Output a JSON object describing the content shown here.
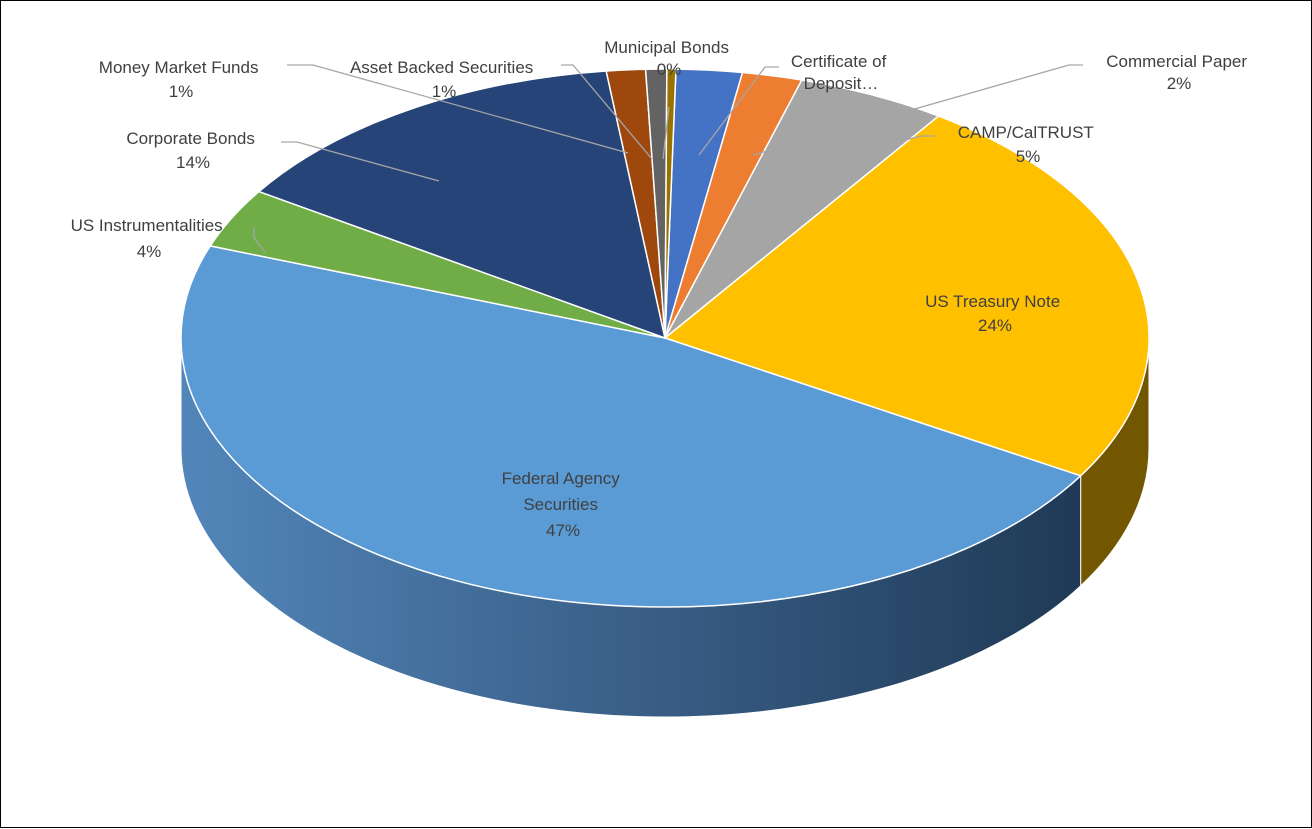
{
  "chart_data": {
    "type": "pie",
    "title": "",
    "slices": [
      {
        "label": "Certificate of Deposit…",
        "value": 2.2,
        "display": "",
        "color": "#4472C4"
      },
      {
        "label": "Commercial Paper",
        "value": 2.0,
        "display": "2%",
        "color": "#ED7D31"
      },
      {
        "label": "CAMP/CalTRUST",
        "value": 5.0,
        "display": "5%",
        "color": "#A5A5A5"
      },
      {
        "label": "US Treasury Note",
        "value": 24.0,
        "display": "24%",
        "color": "#FFC000"
      },
      {
        "label": "Federal Agency Securities",
        "value": 47.0,
        "display": "47%",
        "color": "#5B9BD5"
      },
      {
        "label": "US Instrumentalities",
        "value": 3.6,
        "display": "4%",
        "color": "#70AD47"
      },
      {
        "label": "Corporate Bonds",
        "value": 13.9,
        "display": "14%",
        "color": "#264478"
      },
      {
        "label": "Money Market Funds",
        "value": 1.3,
        "display": "1%",
        "color": "#9E480E"
      },
      {
        "label": "Asset Backed Securities",
        "value": 0.7,
        "display": "1%",
        "color": "#636363"
      },
      {
        "label": "Municipal Bonds",
        "value": 0.3,
        "display": "0%",
        "color": "#997300"
      }
    ]
  }
}
